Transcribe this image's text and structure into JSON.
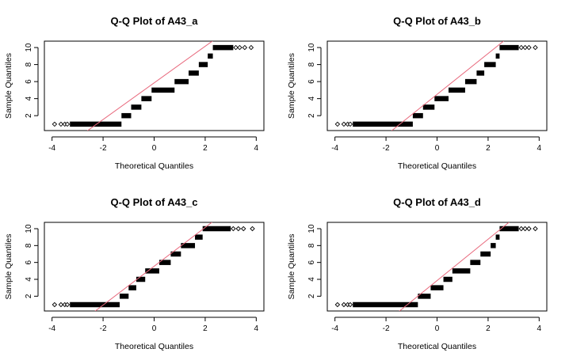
{
  "chart_data": [
    {
      "type": "scatter",
      "title": "Q-Q Plot of A43_a",
      "xlabel": "Theoretical Quantiles",
      "ylabel": "Sample Quantiles",
      "xlim": [
        -4.3,
        4.3
      ],
      "ylim": [
        0.25,
        10.75
      ],
      "xticks": [
        -4,
        -2,
        0,
        2,
        4
      ],
      "yticks": [
        2,
        4,
        6,
        8,
        10
      ],
      "grid": false,
      "marker": "open-diamond",
      "reference_line": {
        "slope": 2.15,
        "intercept": 5.85,
        "color": "#e8687c"
      },
      "steps": [
        {
          "y": 1,
          "x_from": -3.3,
          "x_to": -1.28
        },
        {
          "y": 2,
          "x_from": -1.28,
          "x_to": -0.9
        },
        {
          "y": 3,
          "x_from": -0.9,
          "x_to": -0.5
        },
        {
          "y": 4,
          "x_from": -0.5,
          "x_to": -0.1
        },
        {
          "y": 5,
          "x_from": -0.1,
          "x_to": 0.8
        },
        {
          "y": 6,
          "x_from": 0.8,
          "x_to": 1.35
        },
        {
          "y": 7,
          "x_from": 1.35,
          "x_to": 1.75
        },
        {
          "y": 8,
          "x_from": 1.75,
          "x_to": 2.1
        },
        {
          "y": 9,
          "x_from": 2.1,
          "x_to": 2.3
        },
        {
          "y": 10,
          "x_from": 2.3,
          "x_to": 3.1
        }
      ],
      "outliers": [
        {
          "x": -3.9,
          "y": 1
        },
        {
          "x": -3.65,
          "y": 1
        },
        {
          "x": -3.5,
          "y": 1
        },
        {
          "x": -3.4,
          "y": 1
        },
        {
          "x": 3.2,
          "y": 10
        },
        {
          "x": 3.35,
          "y": 10
        },
        {
          "x": 3.55,
          "y": 10
        },
        {
          "x": 3.8,
          "y": 10
        }
      ]
    },
    {
      "type": "scatter",
      "title": "Q-Q Plot of A43_b",
      "xlabel": "Theoretical Quantiles",
      "ylabel": "Sample Quantiles",
      "xlim": [
        -4.3,
        4.3
      ],
      "ylim": [
        0.25,
        10.75
      ],
      "xticks": [
        -4,
        -2,
        0,
        2,
        4
      ],
      "yticks": [
        2,
        4,
        6,
        8,
        10
      ],
      "grid": false,
      "marker": "open-diamond",
      "reference_line": {
        "slope": 2.4,
        "intercept": 4.5,
        "color": "#e8687c"
      },
      "steps": [
        {
          "y": 1,
          "x_from": -3.3,
          "x_to": -0.95
        },
        {
          "y": 2,
          "x_from": -0.95,
          "x_to": -0.55
        },
        {
          "y": 3,
          "x_from": -0.55,
          "x_to": -0.1
        },
        {
          "y": 4,
          "x_from": -0.1,
          "x_to": 0.45
        },
        {
          "y": 5,
          "x_from": 0.45,
          "x_to": 1.1
        },
        {
          "y": 6,
          "x_from": 1.1,
          "x_to": 1.55
        },
        {
          "y": 7,
          "x_from": 1.55,
          "x_to": 1.85
        },
        {
          "y": 8,
          "x_from": 1.85,
          "x_to": 2.3
        },
        {
          "y": 9,
          "x_from": 2.3,
          "x_to": 2.45
        },
        {
          "y": 10,
          "x_from": 2.45,
          "x_to": 3.2
        }
      ],
      "outliers": [
        {
          "x": -3.9,
          "y": 1
        },
        {
          "x": -3.65,
          "y": 1
        },
        {
          "x": -3.5,
          "y": 1
        },
        {
          "x": -3.4,
          "y": 1
        },
        {
          "x": 3.3,
          "y": 10
        },
        {
          "x": 3.45,
          "y": 10
        },
        {
          "x": 3.6,
          "y": 10
        },
        {
          "x": 3.85,
          "y": 10
        }
      ]
    },
    {
      "type": "scatter",
      "title": "Q-Q Plot of A43_c",
      "xlabel": "Theoretical Quantiles",
      "ylabel": "Sample Quantiles",
      "xlim": [
        -4.3,
        4.3
      ],
      "ylim": [
        0.25,
        10.75
      ],
      "xticks": [
        -4,
        -2,
        0,
        2,
        4
      ],
      "yticks": [
        2,
        4,
        6,
        8,
        10
      ],
      "grid": false,
      "marker": "open-diamond",
      "reference_line": {
        "slope": 2.3,
        "intercept": 5.55,
        "color": "#e8687c"
      },
      "steps": [
        {
          "y": 1,
          "x_from": -3.3,
          "x_to": -1.35
        },
        {
          "y": 2,
          "x_from": -1.35,
          "x_to": -1.0
        },
        {
          "y": 3,
          "x_from": -1.0,
          "x_to": -0.7
        },
        {
          "y": 4,
          "x_from": -0.7,
          "x_to": -0.35
        },
        {
          "y": 5,
          "x_from": -0.35,
          "x_to": 0.2
        },
        {
          "y": 6,
          "x_from": 0.2,
          "x_to": 0.65
        },
        {
          "y": 7,
          "x_from": 0.65,
          "x_to": 1.05
        },
        {
          "y": 8,
          "x_from": 1.05,
          "x_to": 1.6
        },
        {
          "y": 9,
          "x_from": 1.6,
          "x_to": 1.9
        },
        {
          "y": 10,
          "x_from": 1.9,
          "x_to": 3.0
        }
      ],
      "outliers": [
        {
          "x": -3.9,
          "y": 1
        },
        {
          "x": -3.65,
          "y": 1
        },
        {
          "x": -3.5,
          "y": 1
        },
        {
          "x": -3.4,
          "y": 1
        },
        {
          "x": 3.1,
          "y": 10
        },
        {
          "x": 3.3,
          "y": 10
        },
        {
          "x": 3.5,
          "y": 10
        },
        {
          "x": 3.85,
          "y": 10
        }
      ]
    },
    {
      "type": "scatter",
      "title": "Q-Q Plot of A43_d",
      "xlabel": "Theoretical Quantiles",
      "ylabel": "Sample Quantiles",
      "xlim": [
        -4.3,
        4.3
      ],
      "ylim": [
        0.25,
        10.75
      ],
      "xticks": [
        -4,
        -2,
        0,
        2,
        4
      ],
      "yticks": [
        2,
        4,
        6,
        8,
        10
      ],
      "grid": false,
      "marker": "open-diamond",
      "reference_line": {
        "slope": 2.45,
        "intercept": 3.85,
        "color": "#e8687c"
      },
      "steps": [
        {
          "y": 1,
          "x_from": -3.3,
          "x_to": -0.75
        },
        {
          "y": 2,
          "x_from": -0.75,
          "x_to": -0.25
        },
        {
          "y": 3,
          "x_from": -0.25,
          "x_to": 0.25
        },
        {
          "y": 4,
          "x_from": 0.25,
          "x_to": 0.6
        },
        {
          "y": 5,
          "x_from": 0.6,
          "x_to": 1.3
        },
        {
          "y": 6,
          "x_from": 1.3,
          "x_to": 1.7
        },
        {
          "y": 7,
          "x_from": 1.7,
          "x_to": 2.1
        },
        {
          "y": 8,
          "x_from": 2.1,
          "x_to": 2.3
        },
        {
          "y": 9,
          "x_from": 2.3,
          "x_to": 2.45
        },
        {
          "y": 10,
          "x_from": 2.45,
          "x_to": 3.2
        }
      ],
      "outliers": [
        {
          "x": -3.9,
          "y": 1
        },
        {
          "x": -3.65,
          "y": 1
        },
        {
          "x": -3.5,
          "y": 1
        },
        {
          "x": -3.4,
          "y": 1
        },
        {
          "x": 3.3,
          "y": 10
        },
        {
          "x": 3.45,
          "y": 10
        },
        {
          "x": 3.6,
          "y": 10
        },
        {
          "x": 3.85,
          "y": 10
        }
      ]
    }
  ]
}
